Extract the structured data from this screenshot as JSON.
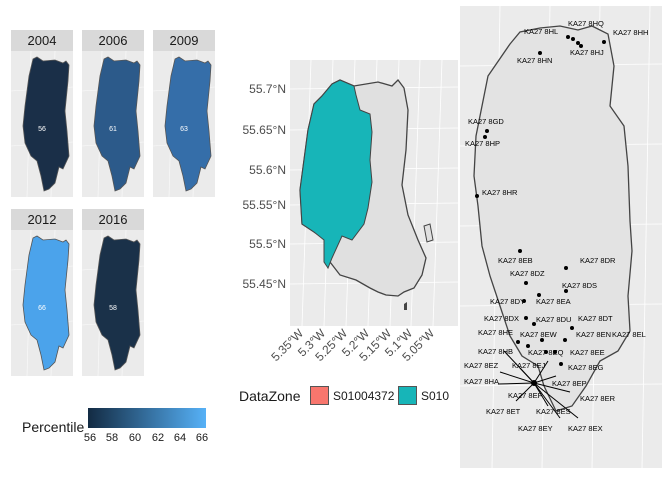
{
  "facets": [
    {
      "year": "2004",
      "label": "56",
      "fill": "#1a2f48"
    },
    {
      "year": "2006",
      "label": "61",
      "fill": "#2c5a8a"
    },
    {
      "year": "2009",
      "label": "63",
      "fill": "#356ea9"
    },
    {
      "year": "2012",
      "label": "66",
      "fill": "#4ba3eb"
    },
    {
      "year": "2016",
      "label": "58",
      "fill": "#1a3149"
    }
  ],
  "percentile_legend": {
    "title": "Percentile",
    "ticks": [
      "56",
      "58",
      "60",
      "62",
      "64",
      "66"
    ],
    "low_color": "#132b43",
    "high_color": "#56b1f7"
  },
  "datazone_map": {
    "y_labels": [
      "55.7°N",
      "55.65°N",
      "55.6°N",
      "55.55°N",
      "55.5°N",
      "55.45°N"
    ],
    "x_labels": [
      "5.35°W",
      "5.3°W",
      "5.25°W",
      "5.2°W",
      "5.15°W",
      "5.1°W",
      "5.05°W"
    ],
    "highlight_color": "#17b5b8",
    "land_color": "#e0e0e0"
  },
  "datazone_legend": {
    "title": "DataZone",
    "items": [
      {
        "label": "S01004372",
        "color": "#f8766d"
      },
      {
        "label": "S010",
        "color": "#17b5b8"
      }
    ]
  },
  "postcode_map": {
    "labels": [
      "KA27 8HQ",
      "KA27 8HL",
      "KA27 8HH",
      "KA27 8HJ",
      "KA27 8HN",
      "KA27 8GD",
      "KA27 8HP",
      "KA27 8HR",
      "KA27 8EB",
      "KA27 8DR",
      "KA27 8DZ",
      "KA27 8DS",
      "KA27 8DY",
      "KA27 8EA",
      "KA27 8DX",
      "KA27 8DU",
      "KA27 8DT",
      "KA27 8HE",
      "KA27 8EW",
      "KA27 8EN",
      "KA27 8EL",
      "KA27 8HB",
      "KA27 8EQ",
      "KA27 8EE",
      "KA27 8EZ",
      "KA27 8EJ",
      "KA27 8EG",
      "KA27 8HA",
      "KA27 8EP",
      "KA27 8EF",
      "KA27 8ER",
      "KA27 8ET",
      "KA27 8ES",
      "KA27 8EY",
      "KA27 8EX"
    ]
  }
}
